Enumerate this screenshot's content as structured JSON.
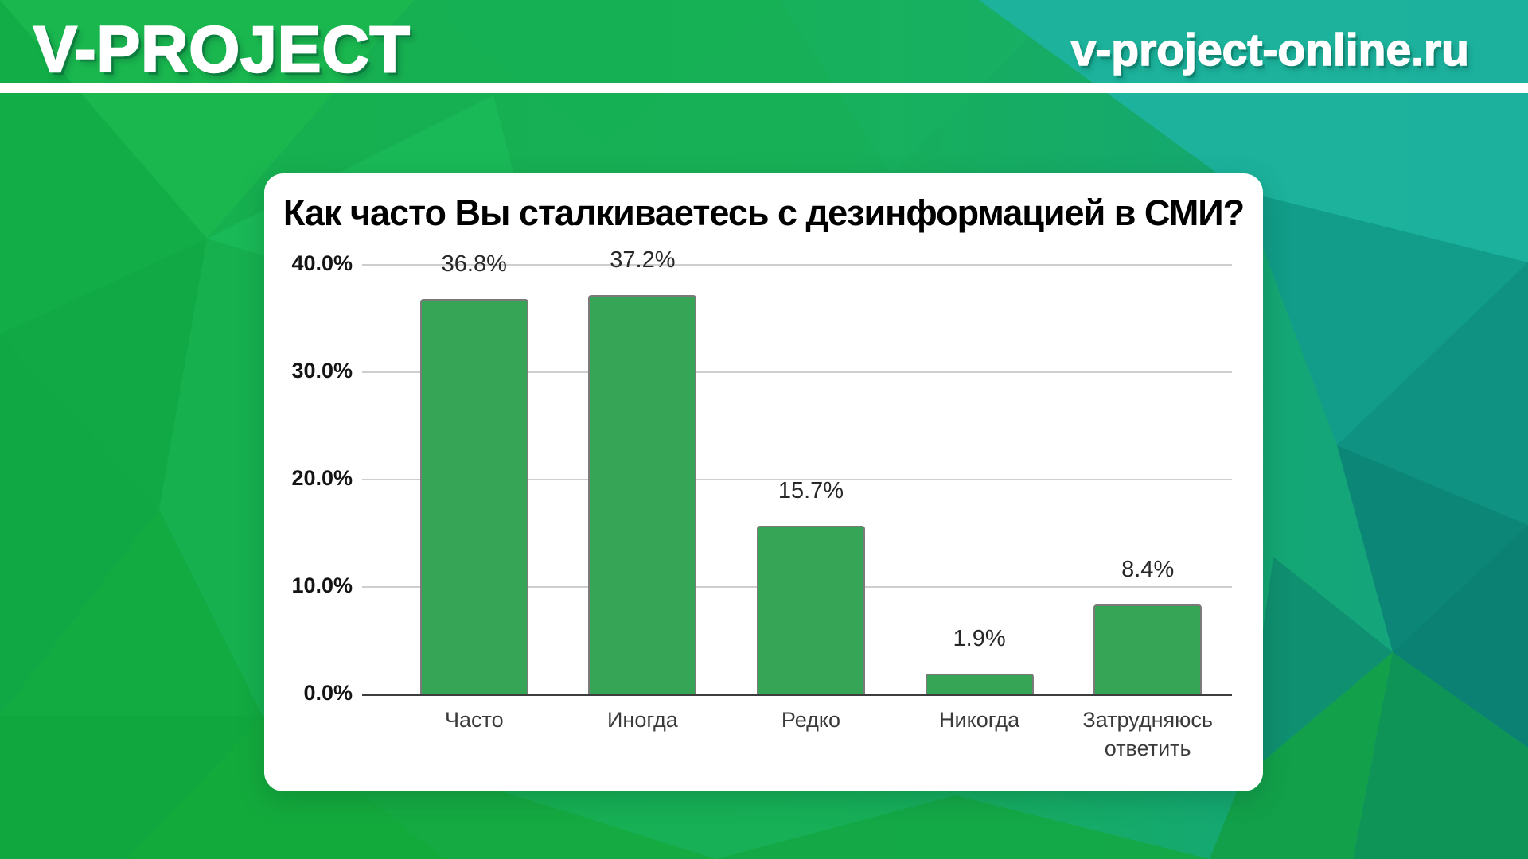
{
  "header": {
    "logo": "V-PROJECT",
    "site": "v-project-online.ru"
  },
  "colors": {
    "brand_green": "#16b04c",
    "brand_teal": "#13a285",
    "bar_fill": "#36a556",
    "bar_border": "#7a7a7a",
    "gridline": "#cecece",
    "axis": "#3d3d3d"
  },
  "chart_data": {
    "type": "bar",
    "title": "Как часто Вы сталкиваетесь с дезинформацией в СМИ?",
    "categories": [
      "Часто",
      "Иногда",
      "Редко",
      "Никогда",
      "Затрудняюсь ответить"
    ],
    "values": [
      36.8,
      37.2,
      15.7,
      1.9,
      8.4
    ],
    "value_labels": [
      "36.8%",
      "37.2%",
      "15.7%",
      "1.9%",
      "8.4%"
    ],
    "y_ticks": [
      "40.0%",
      "30.0%",
      "20.0%",
      "10.0%",
      "0.0%"
    ],
    "y_tick_values": [
      40,
      30,
      20,
      10,
      0
    ],
    "ylim": [
      0,
      40
    ],
    "xlabel": "",
    "ylabel": "",
    "grid": true,
    "legend": "none",
    "bar_color": "#36a556"
  }
}
